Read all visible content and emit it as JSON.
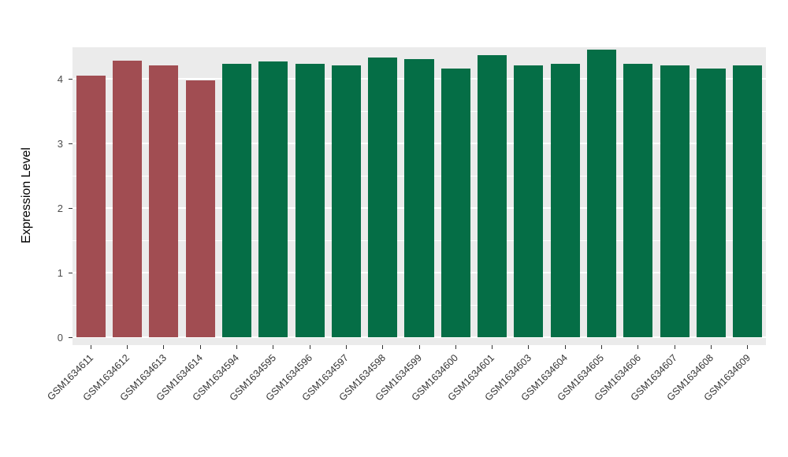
{
  "chart_data": {
    "type": "bar",
    "title": "",
    "xlabel": "",
    "ylabel": "Expression Level",
    "ylim": [
      0,
      4.5
    ],
    "yticks": [
      0,
      1,
      2,
      3,
      4
    ],
    "yticks_minor": [
      0.5,
      1.5,
      2.5,
      3.5
    ],
    "grid": true,
    "legend_position": "none",
    "categories": [
      "GSM1634611",
      "GSM1634612",
      "GSM1634613",
      "GSM1634614",
      "GSM1634594",
      "GSM1634595",
      "GSM1634596",
      "GSM1634597",
      "GSM1634598",
      "GSM1634599",
      "GSM1634600",
      "GSM1634601",
      "GSM1634603",
      "GSM1634604",
      "GSM1634605",
      "GSM1634606",
      "GSM1634607",
      "GSM1634608",
      "GSM1634609"
    ],
    "values": [
      4.05,
      4.28,
      4.21,
      3.97,
      4.23,
      4.27,
      4.23,
      4.21,
      4.33,
      4.31,
      4.16,
      4.36,
      4.21,
      4.23,
      4.45,
      4.23,
      4.21,
      4.16,
      4.21
    ],
    "bar_colors": [
      "#A14D52",
      "#A14D52",
      "#A14D52",
      "#A14D52",
      "#056E46",
      "#056E46",
      "#056E46",
      "#056E46",
      "#056E46",
      "#056E46",
      "#056E46",
      "#056E46",
      "#056E46",
      "#056E46",
      "#056E46",
      "#056E46",
      "#056E46",
      "#056E46",
      "#056E46"
    ],
    "colors": {
      "highlight_group": "#A14D52",
      "default_group": "#056E46",
      "panel_background": "#EBEBEB",
      "gridline": "#FFFFFF",
      "tick_text": "#4D4D4D",
      "axis_title": "#000000"
    }
  }
}
